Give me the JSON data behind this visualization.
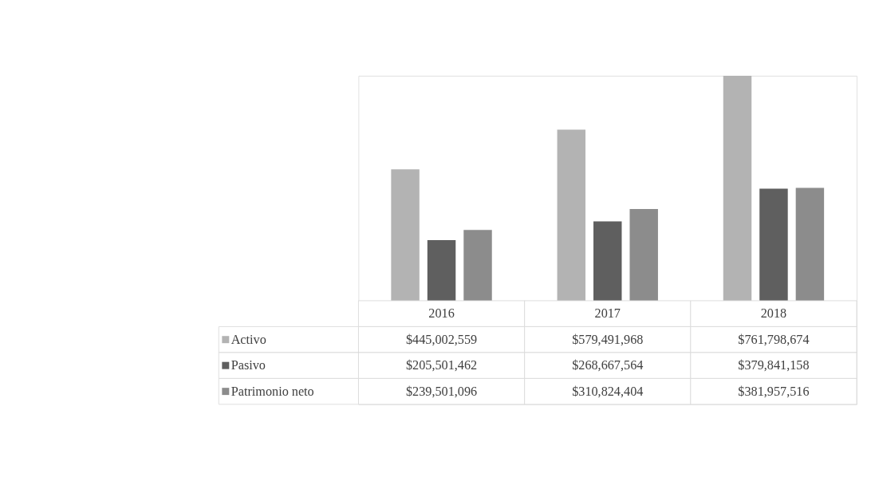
{
  "chart_data": {
    "type": "bar",
    "categories": [
      "2016",
      "2017",
      "2018"
    ],
    "legend": "bottom left",
    "series": [
      {
        "name": "Activo",
        "color": "#b3b3b3",
        "values": [
          445002559,
          579491968,
          761798674
        ],
        "value_labels": [
          "$445,002,559",
          "$579,491,968",
          "$761,798,674"
        ]
      },
      {
        "name": "Pasivo",
        "color": "#5f5f5f",
        "values": [
          205501462,
          268667564,
          379841158
        ],
        "value_labels": [
          "$205,501,462",
          "$268,667,564",
          "$379,841,158"
        ]
      },
      {
        "name": "Patrimonio neto",
        "color": "#8c8c8c",
        "values": [
          239501096,
          310824404,
          381957516
        ],
        "value_labels": [
          "$239,501,096",
          "$310,824,404",
          "$381,957,516"
        ]
      }
    ]
  }
}
